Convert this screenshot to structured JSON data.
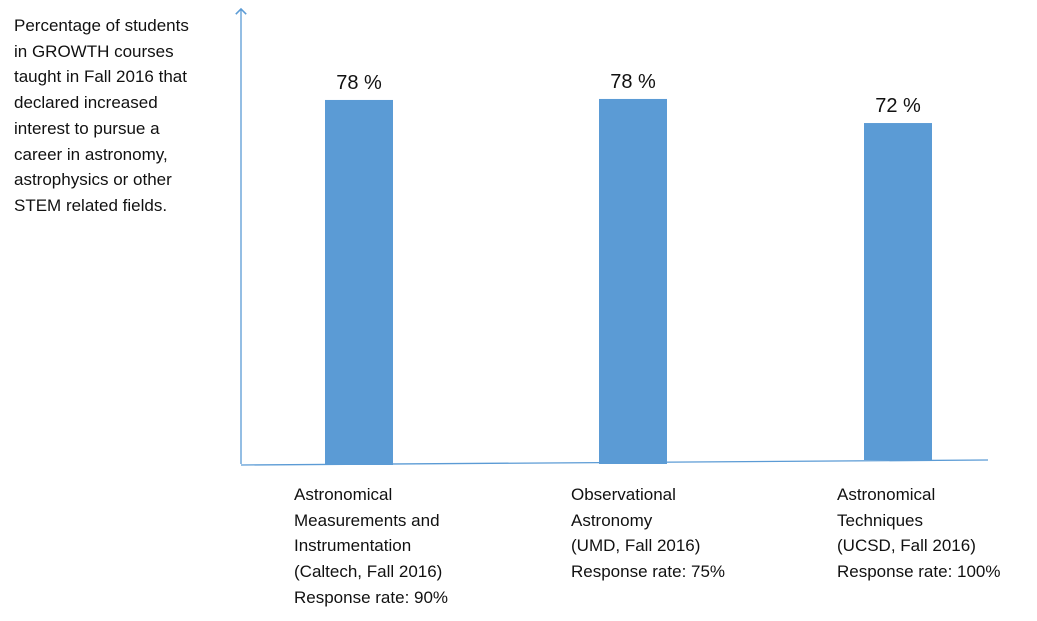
{
  "chart_data": {
    "type": "bar",
    "ylabel": "Percentage of students\nin GROWTH courses\ntaught in Fall 2016 that\ndeclared increased\ninterest to pursue a\ncareer in astronomy,\nastrophysics or other\nSTEM related fields.",
    "categories": [
      [
        "Astronomical",
        "Measurements and",
        "Instrumentation",
        "(Caltech, Fall 2016)",
        "Response rate: 90%"
      ],
      [
        "Observational",
        "Astronomy",
        "(UMD, Fall 2016)",
        "Response rate: 75%"
      ],
      [
        "Astronomical",
        "Techniques",
        "(UCSD, Fall 2016)",
        "Response rate: 100%"
      ]
    ],
    "values": [
      78,
      78,
      72
    ],
    "data_labels": [
      "78 %",
      "78 %",
      "72 %"
    ],
    "ylim": [
      0,
      100
    ],
    "bar_color": "#5b9bd5",
    "axis_color": "#5b9bd5",
    "grid": false
  }
}
